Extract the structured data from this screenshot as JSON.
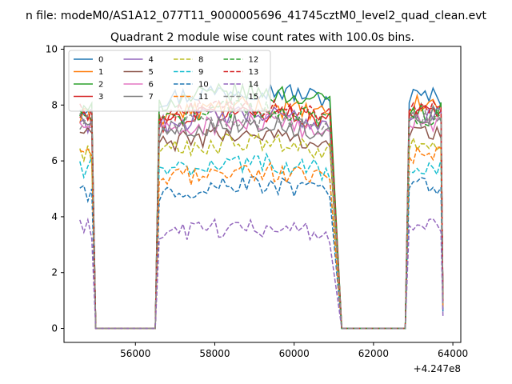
{
  "chart_data": {
    "type": "line",
    "suptitle": "n file: modeM0/AS1A12_077T11_9000005696_41745cztM0_level2_quad_clean.evt",
    "title": "Quadrant 2 module wise count rates with 100.0s bins.",
    "xlabel": "",
    "ylabel": "",
    "x_offset_label": "+4.247e8",
    "xlim": [
      54200,
      64200
    ],
    "ylim": [
      -0.5,
      10.1
    ],
    "xticks": [
      56000,
      58000,
      60000,
      62000,
      64000
    ],
    "xtick_labels": [
      "56000",
      "58000",
      "60000",
      "62000",
      "64000"
    ],
    "yticks": [
      0,
      2,
      4,
      6,
      8,
      10
    ],
    "ytick_labels": [
      "0",
      "2",
      "4",
      "6",
      "8",
      "10"
    ],
    "legend_position": "top-left",
    "legend_columns": 4,
    "time_segments": [
      {
        "start": 54600,
        "end": 54900,
        "rise_to": 55000
      },
      {
        "start": 56700,
        "end": 60900,
        "rise_from": 56500,
        "drop_to": 61200
      },
      {
        "start": 62900,
        "end": 63700,
        "rise_from": 62800
      }
    ],
    "zero_gaps": [
      [
        55000,
        56500
      ],
      [
        61200,
        62800
      ]
    ],
    "series": [
      {
        "name": "0",
        "color": "#1f77b4",
        "dash": "solid",
        "level1": 8.0,
        "level2": 8.2,
        "level3": 8.3
      },
      {
        "name": "1",
        "color": "#ff7f0e",
        "dash": "solid",
        "level1": 7.5,
        "level2": 7.6,
        "level3": 8.0
      },
      {
        "name": "2",
        "color": "#2ca02c",
        "dash": "solid",
        "level1": 7.7,
        "level2": 8.1,
        "level3": 7.8
      },
      {
        "name": "3",
        "color": "#d62728",
        "dash": "solid",
        "level1": 7.6,
        "level2": 7.4,
        "level3": 7.9
      },
      {
        "name": "4",
        "color": "#9467bd",
        "dash": "solid",
        "level1": 7.4,
        "level2": 7.3,
        "level3": 7.6
      },
      {
        "name": "5",
        "color": "#8c564b",
        "dash": "solid",
        "level1": 7.0,
        "level2": 6.6,
        "level3": 7.0
      },
      {
        "name": "6",
        "color": "#e377c2",
        "dash": "solid",
        "level1": 7.3,
        "level2": 7.0,
        "level3": 7.4
      },
      {
        "name": "7",
        "color": "#7f7f7f",
        "dash": "solid",
        "level1": 7.6,
        "level2": 7.0,
        "level3": 7.7
      },
      {
        "name": "8",
        "color": "#bcbd22",
        "dash": "dashed",
        "level1": 6.3,
        "level2": 6.3,
        "level3": 6.5
      },
      {
        "name": "9",
        "color": "#17becf",
        "dash": "dashed",
        "level1": 5.8,
        "level2": 5.6,
        "level3": 5.7
      },
      {
        "name": "10",
        "color": "#1f77b4",
        "dash": "dashed",
        "level1": 4.8,
        "level2": 4.8,
        "level3": 5.1
      },
      {
        "name": "11",
        "color": "#ff7f0e",
        "dash": "dashed",
        "level1": 6.1,
        "level2": 5.3,
        "level3": 6.2
      },
      {
        "name": "12",
        "color": "#2ca02c",
        "dash": "dashed",
        "level1": 7.5,
        "level2": 7.5,
        "level3": 7.6
      },
      {
        "name": "13",
        "color": "#d62728",
        "dash": "dashed",
        "level1": 7.7,
        "level2": 7.6,
        "level3": 7.8
      },
      {
        "name": "14",
        "color": "#9467bd",
        "dash": "dashed",
        "level1": 3.5,
        "level2": 3.3,
        "level3": 3.7
      },
      {
        "name": "15",
        "color": "#8c8c8c",
        "dash": "dashed",
        "level1": 7.5,
        "level2": 7.2,
        "level3": 7.5
      }
    ]
  }
}
